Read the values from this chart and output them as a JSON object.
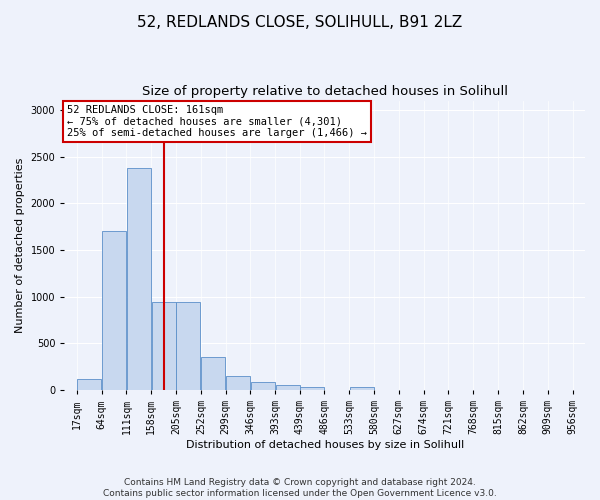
{
  "title": "52, REDLANDS CLOSE, SOLIHULL, B91 2LZ",
  "subtitle": "Size of property relative to detached houses in Solihull",
  "xlabel": "Distribution of detached houses by size in Solihull",
  "ylabel": "Number of detached properties",
  "footer_line1": "Contains HM Land Registry data © Crown copyright and database right 2024.",
  "footer_line2": "Contains public sector information licensed under the Open Government Licence v3.0.",
  "annotation_line1": "52 REDLANDS CLOSE: 161sqm",
  "annotation_line2": "← 75% of detached houses are smaller (4,301)",
  "annotation_line3": "25% of semi-detached houses are larger (1,466) →",
  "bins": [
    17,
    64,
    111,
    158,
    205,
    252,
    299,
    346,
    393,
    439,
    486,
    533,
    580,
    627,
    674,
    721,
    768,
    815,
    862,
    909,
    956
  ],
  "bar_heights": [
    120,
    1700,
    2380,
    940,
    940,
    360,
    155,
    85,
    60,
    35,
    0,
    35,
    0,
    0,
    0,
    0,
    0,
    0,
    0,
    0
  ],
  "bar_color": "#c8d8ef",
  "bar_edge_color": "#5b8fc9",
  "vline_color": "#cc0000",
  "vline_bar_index": 3,
  "ylim": [
    0,
    3100
  ],
  "yticks": [
    0,
    500,
    1000,
    1500,
    2000,
    2500,
    3000
  ],
  "background_color": "#eef2fb",
  "plot_bg_color": "#eef2fb",
  "annotation_box_facecolor": "#ffffff",
  "annotation_box_edgecolor": "#cc0000",
  "title_fontsize": 11,
  "subtitle_fontsize": 9.5,
  "axis_label_fontsize": 8,
  "tick_fontsize": 7,
  "annotation_fontsize": 7.5,
  "footer_fontsize": 6.5
}
